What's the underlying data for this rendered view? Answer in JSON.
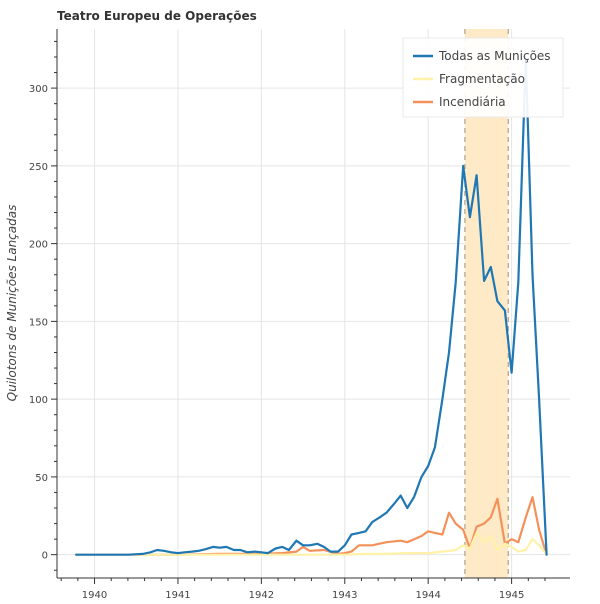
{
  "chart_data": {
    "type": "line",
    "title": "Teatro Europeu de Operações",
    "xlabel": "",
    "ylabel": "Quilotons de Munições Lançadas",
    "xlim": [
      1939.55,
      1945.7
    ],
    "ylim": [
      -15,
      338
    ],
    "x_ticks": [
      1940,
      1941,
      1942,
      1943,
      1944,
      1945
    ],
    "y_ticks": [
      0,
      50,
      100,
      150,
      200,
      250,
      300
    ],
    "grid": true,
    "legend_position": "top-right",
    "highlight_band": {
      "x_start": 1944.44,
      "x_end": 1944.96,
      "color": "#ffe9c4",
      "border_color": "#b0a08a"
    },
    "series": [
      {
        "name": "Todas as Munições",
        "color": "#1f77b4",
        "x": [
          1939.78,
          1940.0,
          1940.2,
          1940.4,
          1940.58,
          1940.67,
          1940.75,
          1940.83,
          1940.92,
          1941.0,
          1941.08,
          1941.17,
          1941.25,
          1941.33,
          1941.42,
          1941.5,
          1941.58,
          1941.67,
          1941.75,
          1941.83,
          1941.92,
          1942.0,
          1942.08,
          1942.17,
          1942.25,
          1942.33,
          1942.42,
          1942.5,
          1942.58,
          1942.67,
          1942.75,
          1942.83,
          1942.92,
          1943.0,
          1943.08,
          1943.17,
          1943.25,
          1943.33,
          1943.42,
          1943.5,
          1943.58,
          1943.67,
          1943.75,
          1943.83,
          1943.92,
          1944.0,
          1944.08,
          1944.17,
          1944.25,
          1944.33,
          1944.42,
          1944.5,
          1944.58,
          1944.67,
          1944.75,
          1944.83,
          1944.92,
          1945.0,
          1945.08,
          1945.17,
          1945.25,
          1945.33,
          1945.42
        ],
        "values": [
          0,
          0,
          0,
          0,
          0.5,
          1.5,
          3,
          2.5,
          1.5,
          1,
          1.5,
          2,
          2.5,
          3.5,
          5,
          4.5,
          5,
          3,
          3,
          1.5,
          2,
          1.5,
          1,
          4,
          5,
          3,
          9,
          6,
          6,
          7,
          5,
          2,
          2,
          6,
          13,
          14,
          15,
          21,
          24,
          27,
          32,
          38,
          30,
          37,
          50,
          57,
          69,
          100,
          130,
          175,
          250,
          217,
          244,
          176,
          185,
          163,
          157,
          117,
          175,
          320,
          180,
          100,
          0
        ]
      },
      {
        "name": "Fragmentação",
        "color": "#fff2a8",
        "x": [
          1939.78,
          1940.5,
          1941.0,
          1941.5,
          1942.0,
          1942.5,
          1943.0,
          1943.25,
          1943.5,
          1943.75,
          1944.0,
          1944.17,
          1944.33,
          1944.42,
          1944.5,
          1944.58,
          1944.67,
          1944.75,
          1944.83,
          1944.92,
          1945.0,
          1945.08,
          1945.17,
          1945.25,
          1945.33,
          1945.42
        ],
        "values": [
          0,
          0,
          0,
          0,
          0,
          0,
          0,
          0.5,
          0.5,
          1,
          1,
          2,
          3,
          6,
          4,
          14,
          8,
          12,
          3,
          7,
          5,
          2,
          3,
          10,
          6,
          0
        ]
      },
      {
        "name": "Incendiária",
        "color": "#f4915a",
        "x": [
          1939.78,
          1940.0,
          1940.5,
          1941.0,
          1941.5,
          1941.75,
          1942.0,
          1942.25,
          1942.42,
          1942.5,
          1942.58,
          1942.75,
          1942.92,
          1943.0,
          1943.08,
          1943.17,
          1943.33,
          1943.5,
          1943.67,
          1943.75,
          1943.92,
          1944.0,
          1944.08,
          1944.17,
          1944.25,
          1944.33,
          1944.42,
          1944.5,
          1944.58,
          1944.67,
          1944.75,
          1944.83,
          1944.92,
          1945.0,
          1945.08,
          1945.17,
          1945.25,
          1945.33,
          1945.42
        ],
        "values": [
          0,
          0,
          0,
          0,
          0.5,
          0.5,
          0.5,
          1,
          2,
          5,
          2.5,
          3,
          0.5,
          1,
          2,
          6,
          6,
          8,
          9,
          8,
          12,
          15,
          14,
          13,
          27,
          20,
          16,
          4,
          18,
          20,
          24,
          36,
          7,
          10,
          8,
          24,
          37,
          16,
          0
        ]
      }
    ]
  }
}
